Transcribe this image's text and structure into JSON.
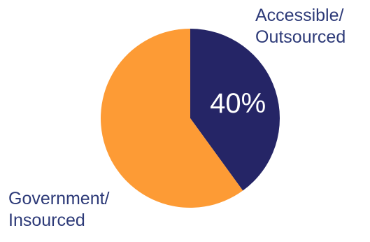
{
  "chart_data": {
    "type": "pie",
    "title": "",
    "slices": [
      {
        "label_lines": [
          "Accessible/",
          "Outsourced"
        ],
        "value": 40,
        "value_label": "40%",
        "color": "#252566"
      },
      {
        "label_lines": [
          "Government/",
          "Insourced"
        ],
        "value": 60,
        "value_label": "",
        "color": "#fd9b35"
      }
    ],
    "legend": "labels-outside",
    "start_angle_deg": 0
  }
}
